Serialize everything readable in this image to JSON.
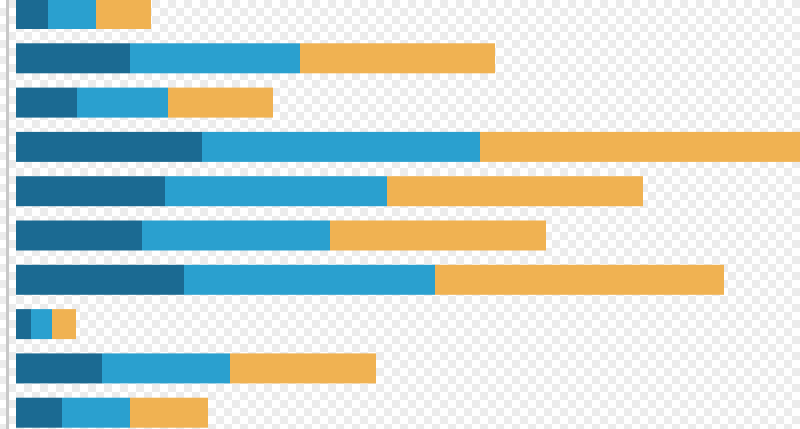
{
  "chart_data": {
    "type": "bar",
    "orientation": "horizontal",
    "stacked": true,
    "title": "",
    "xlabel": "",
    "ylabel": "",
    "xlim": [
      0,
      784
    ],
    "grid": false,
    "legend": "none",
    "categories": [
      "",
      "",
      "",
      "",
      "",
      "",
      "",
      "",
      "",
      ""
    ],
    "series": [
      {
        "color": "#1b6a92",
        "values": [
          32,
          114,
          61,
          186,
          149,
          126,
          168,
          15,
          86,
          46
        ]
      },
      {
        "color": "#2aa0cf",
        "values": [
          48,
          170,
          91,
          278,
          222,
          188,
          251,
          21,
          128,
          68
        ]
      },
      {
        "color": "#f0b252",
        "values": [
          55,
          195,
          105,
          320,
          256,
          216,
          289,
          24,
          146,
          78
        ]
      }
    ],
    "axis_line_color": "#c8c8c8"
  }
}
